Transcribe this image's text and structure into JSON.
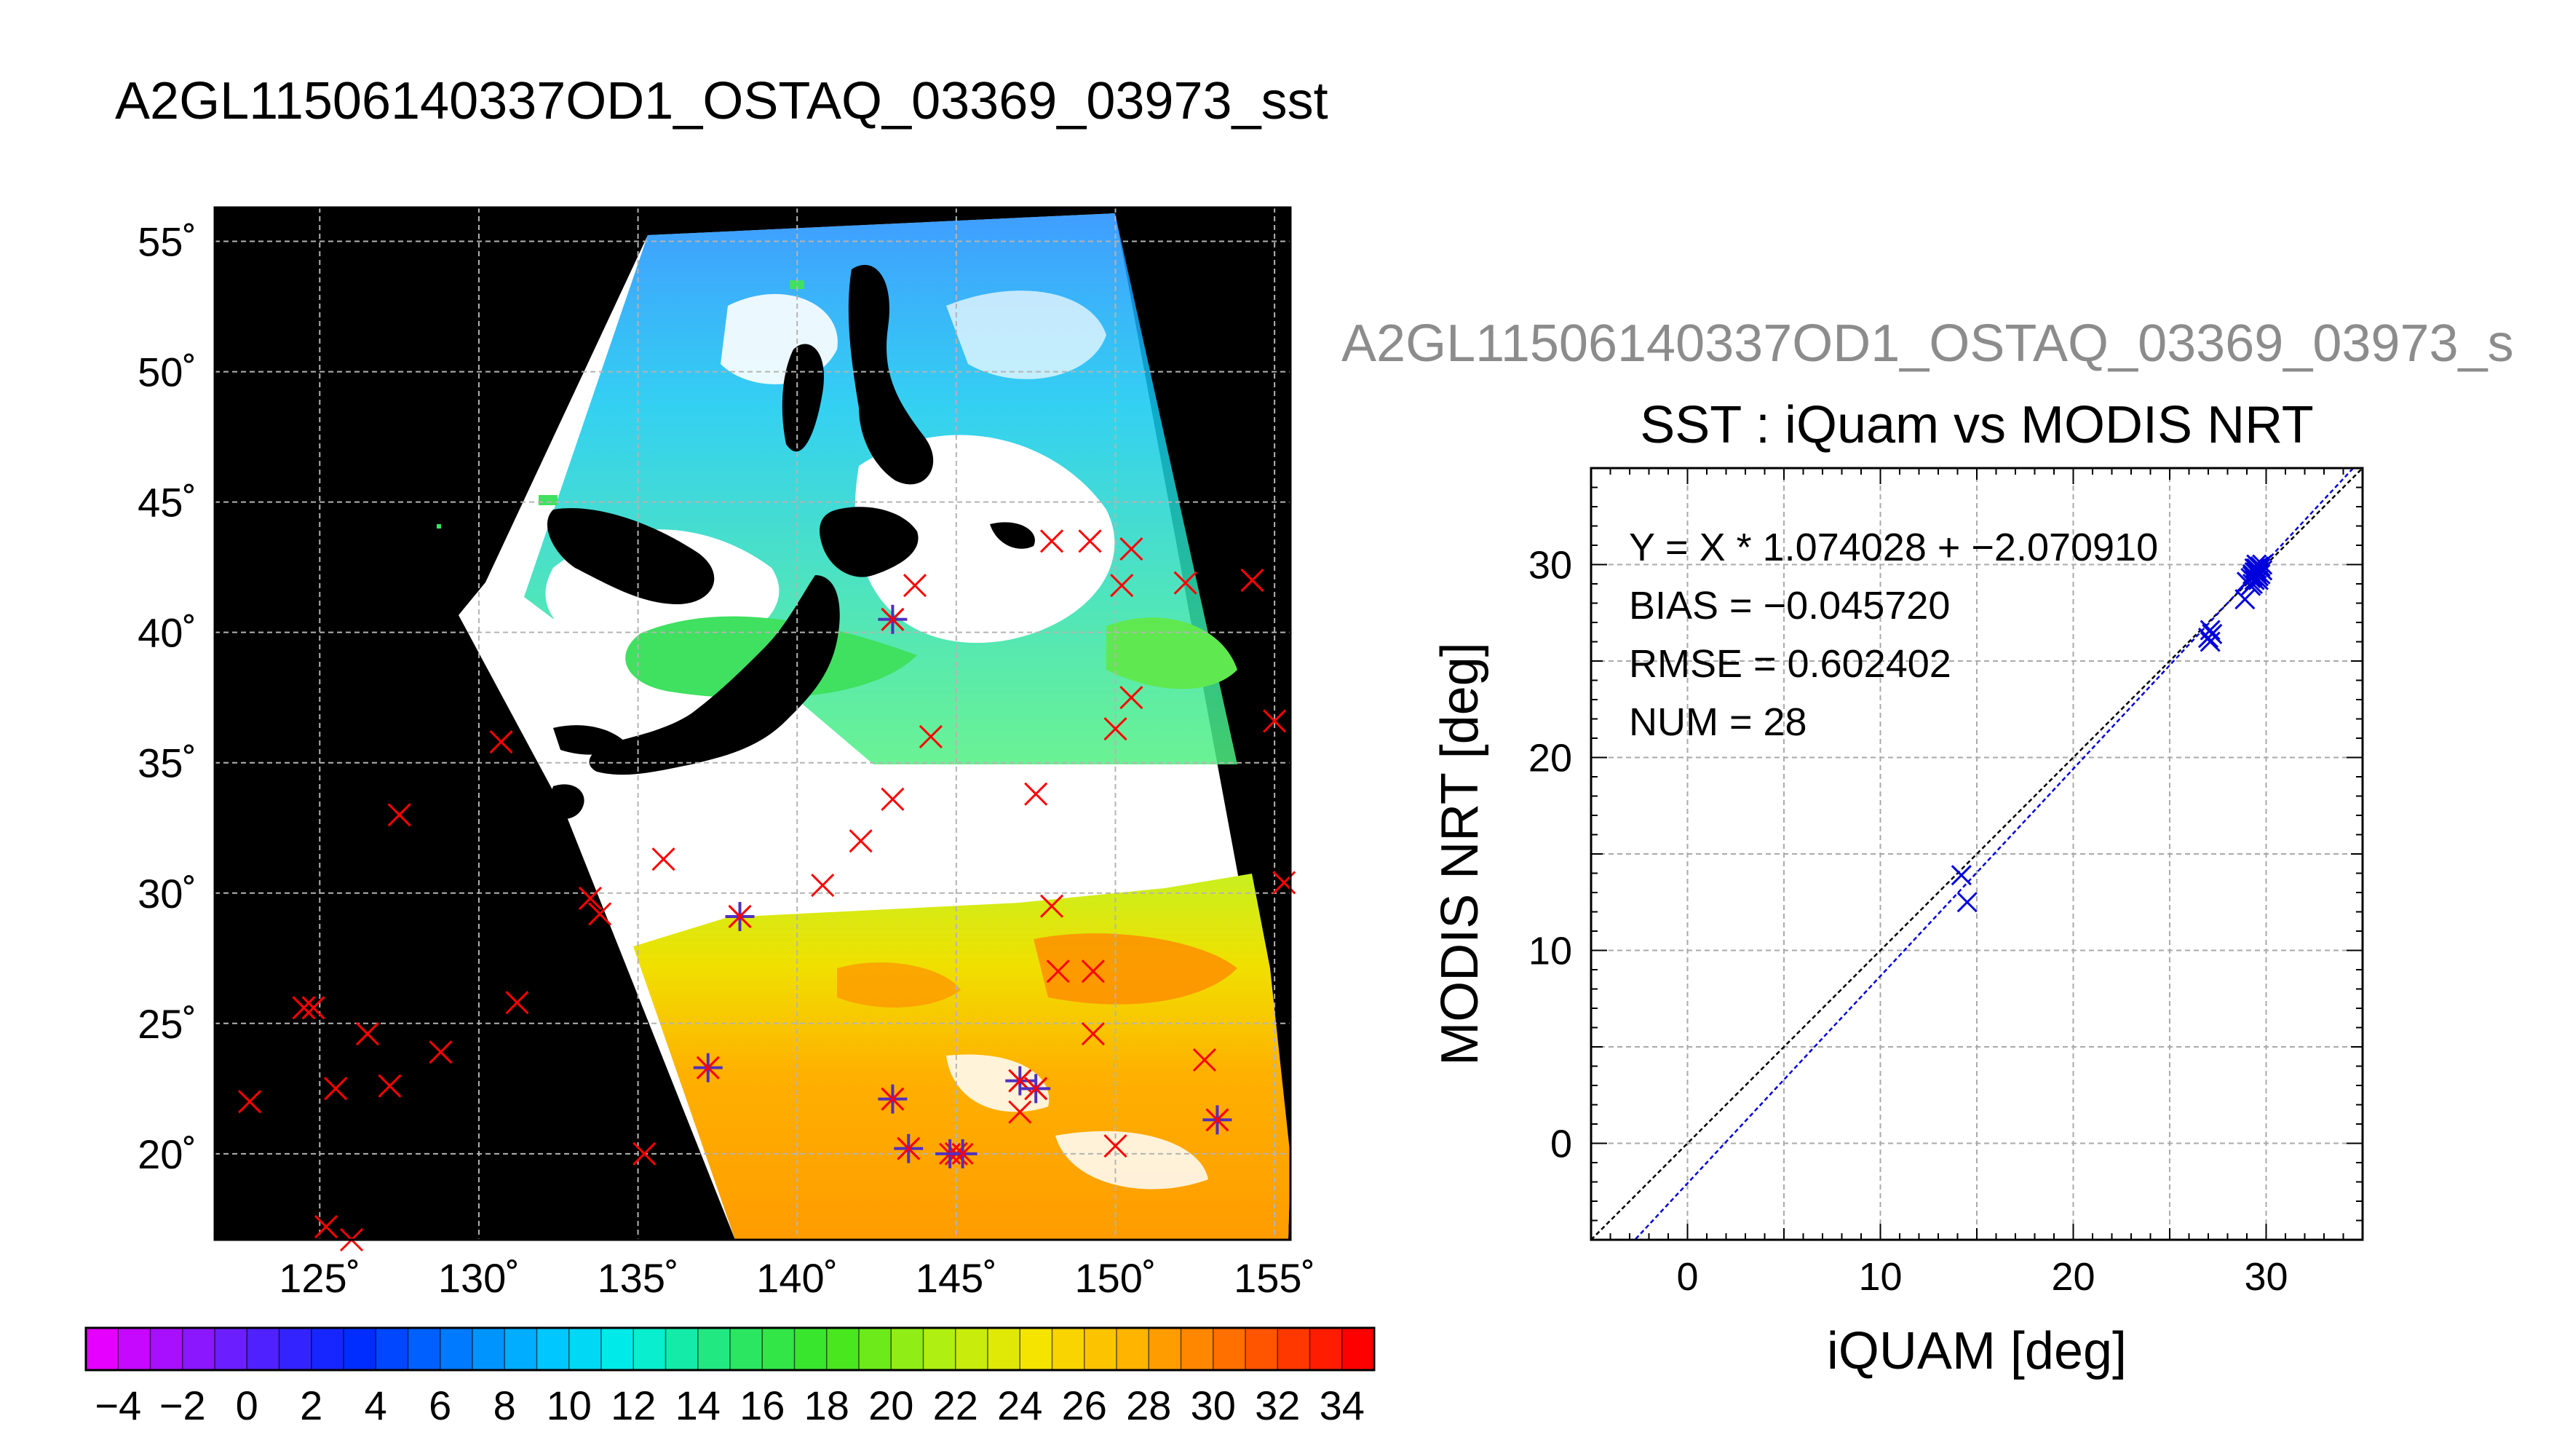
{
  "title": "A2GL11506140337OD1_OSTAQ_03369_03973_sst",
  "chart_data": [
    {
      "type": "map",
      "lon_ticks": [
        125,
        130,
        135,
        140,
        145,
        150,
        155
      ],
      "lon_tick_labels": [
        "125˚",
        "130˚",
        "135˚",
        "140˚",
        "145˚",
        "150˚",
        "155˚"
      ],
      "lat_ticks": [
        20,
        25,
        30,
        35,
        40,
        45,
        50,
        55
      ],
      "lat_tick_labels": [
        "20˚",
        "25˚",
        "30˚",
        "35˚",
        "40˚",
        "45˚",
        "50˚",
        "55˚"
      ],
      "lon_range": [
        121.7,
        155.5
      ],
      "lat_range": [
        16.7,
        56.3
      ],
      "grid": true,
      "colorbar": {
        "min": -5,
        "max": 35,
        "step": 1,
        "tick_labels": [
          "−4",
          "−2",
          "0",
          "2",
          "4",
          "6",
          "8",
          "10",
          "12",
          "14",
          "16",
          "18",
          "20",
          "22",
          "24",
          "26",
          "28",
          "30",
          "32",
          "34"
        ],
        "tick_values": [
          -4,
          -2,
          0,
          2,
          4,
          6,
          8,
          10,
          12,
          14,
          16,
          18,
          20,
          22,
          24,
          26,
          28,
          30,
          32,
          34
        ]
      },
      "iquam_points": [
        [
          122.8,
          22.0
        ],
        [
          124.5,
          25.6
        ],
        [
          124.8,
          25.6
        ],
        [
          125.2,
          17.2
        ],
        [
          125.5,
          22.5
        ],
        [
          126.0,
          16.7
        ],
        [
          126.5,
          24.6
        ],
        [
          127.2,
          22.6
        ],
        [
          127.5,
          33.0
        ],
        [
          128.8,
          23.9
        ],
        [
          130.7,
          35.8
        ],
        [
          131.2,
          25.8
        ],
        [
          133.5,
          29.8
        ],
        [
          133.8,
          29.2
        ],
        [
          135.2,
          20.0
        ],
        [
          135.8,
          31.3
        ],
        [
          137.2,
          23.3
        ],
        [
          138.2,
          29.1
        ],
        [
          140.8,
          30.3
        ],
        [
          142.0,
          32.0
        ],
        [
          143.0,
          22.1
        ],
        [
          143.0,
          33.6
        ],
        [
          143.0,
          40.5
        ],
        [
          143.5,
          20.2
        ],
        [
          143.7,
          41.8
        ],
        [
          144.2,
          36.0
        ],
        [
          145.0,
          20.0
        ],
        [
          147.0,
          21.6
        ],
        [
          147.0,
          22.8
        ],
        [
          147.5,
          22.5
        ],
        [
          147.5,
          33.8
        ],
        [
          148.0,
          43.5
        ],
        [
          148.0,
          29.5
        ],
        [
          148.2,
          27.0
        ],
        [
          149.2,
          43.5
        ],
        [
          149.3,
          24.6
        ],
        [
          149.3,
          27.0
        ],
        [
          150.0,
          36.3
        ],
        [
          150.0,
          20.3
        ],
        [
          150.2,
          41.8
        ],
        [
          150.5,
          43.2
        ],
        [
          150.5,
          37.5
        ],
        [
          152.2,
          41.9
        ],
        [
          152.8,
          23.6
        ],
        [
          153.2,
          21.3
        ],
        [
          154.3,
          42.0
        ],
        [
          155.0,
          36.6
        ],
        [
          155.3,
          30.4
        ]
      ],
      "matchup_points": [
        [
          137.2,
          23.3
        ],
        [
          138.2,
          29.1
        ],
        [
          143.0,
          22.1
        ],
        [
          143.0,
          40.5
        ],
        [
          143.5,
          20.2
        ],
        [
          144.8,
          20.0
        ],
        [
          145.2,
          20.0
        ],
        [
          147.0,
          22.8
        ],
        [
          147.5,
          22.5
        ],
        [
          153.2,
          21.3
        ]
      ]
    },
    {
      "type": "scatter",
      "subtitle": "A2GL11506140337OD1_OSTAQ_03369_03973_s",
      "title": "SST : iQuam vs MODIS NRT",
      "xlabel": "iQUAM [deg]",
      "ylabel": "MODIS NRT [deg]",
      "xlim": [
        -5,
        35
      ],
      "ylim": [
        -5,
        35
      ],
      "xticks": [
        0,
        10,
        20,
        30
      ],
      "yticks": [
        0,
        10,
        20,
        30
      ],
      "grid": true,
      "stats": {
        "fit": "Y = X * 1.074028 + −2.070910",
        "bias": "BIAS = −0.045720",
        "rmse": "RMSE = 0.602402",
        "num": "NUM = 28"
      },
      "fit_line": {
        "slope": 1.074028,
        "intercept": -2.07091
      },
      "points": [
        [
          14.2,
          13.9
        ],
        [
          14.5,
          12.5
        ],
        [
          27.0,
          26.2
        ],
        [
          27.1,
          26.6
        ],
        [
          27.2,
          26.4
        ],
        [
          28.9,
          28.2
        ],
        [
          29.0,
          29.1
        ],
        [
          29.2,
          29.3
        ],
        [
          29.3,
          29.5
        ],
        [
          29.4,
          29.6
        ],
        [
          29.5,
          29.8
        ],
        [
          29.6,
          29.4
        ],
        [
          29.7,
          29.9
        ],
        [
          29.5,
          30.0
        ],
        [
          29.8,
          29.7
        ],
        [
          29.3,
          29.0
        ],
        [
          29.6,
          29.2
        ],
        [
          29.4,
          29.8
        ],
        [
          29.7,
          29.5
        ],
        [
          29.2,
          28.9
        ],
        [
          27.1,
          26.0
        ],
        [
          29.5,
          29.6
        ],
        [
          29.6,
          29.9
        ],
        [
          29.3,
          29.4
        ],
        [
          29.8,
          30.0
        ],
        [
          29.4,
          29.2
        ],
        [
          29.5,
          29.5
        ],
        [
          29.7,
          29.8
        ]
      ],
      "colors": {
        "points": "#0000dd",
        "fit": "#0000dd",
        "identity": "#000000"
      }
    }
  ]
}
